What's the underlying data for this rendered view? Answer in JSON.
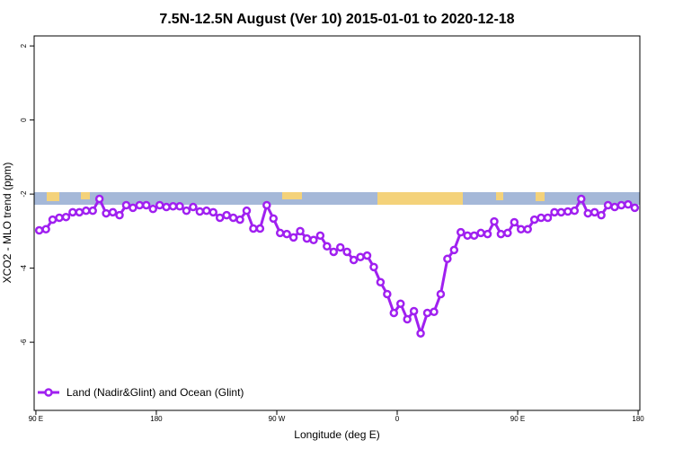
{
  "chart_data": {
    "type": "line",
    "title": "7.5N-12.5N August (Ver 10)   2015-01-01 to 2020-12-18",
    "x_label": "Longitude (deg E)",
    "y_label": "XCO2 - MLO trend (ppm)",
    "x": [
      92.5,
      97.5,
      102.5,
      107.5,
      112.5,
      117.5,
      122.5,
      127.5,
      132.5,
      137.5,
      142.5,
      147.5,
      152.5,
      157.5,
      162.5,
      167.5,
      172.5,
      177.5,
      182.5,
      187.5,
      192.5,
      197.5,
      202.5,
      207.5,
      212.5,
      217.5,
      222.5,
      227.5,
      232.5,
      237.5,
      242.5,
      247.5,
      252.5,
      257.5,
      262.5,
      267.5,
      272.5,
      277.5,
      282.5,
      287.5,
      292.5,
      297.5,
      302.5,
      307.5,
      312.5,
      317.5,
      322.5,
      327.5,
      332.5,
      337.5,
      342.5,
      347.5,
      352.5,
      357.5,
      362.5,
      367.5,
      372.5,
      377.5,
      382.5,
      387.5,
      392.5,
      397.5,
      402.5,
      407.5,
      412.5,
      417.5,
      422.5,
      427.5,
      432.5,
      437.5,
      442.5,
      447.5,
      452.5,
      457.5,
      462.5,
      467.5,
      472.5,
      477.5,
      482.5,
      487.5,
      492.5,
      497.5,
      502.5,
      507.5,
      512.5,
      517.5,
      522.5,
      527.5,
      532.5,
      537.5
    ],
    "series": [
      {
        "name": "Land (Nadir&Glint) and Ocean (Glint)",
        "color": "#a020f0",
        "values": [
          -2.98,
          -2.95,
          -2.69,
          -2.64,
          -2.62,
          -2.49,
          -2.49,
          -2.45,
          -2.45,
          -2.13,
          -2.52,
          -2.49,
          -2.57,
          -2.3,
          -2.37,
          -2.3,
          -2.3,
          -2.4,
          -2.3,
          -2.35,
          -2.33,
          -2.33,
          -2.45,
          -2.35,
          -2.47,
          -2.45,
          -2.49,
          -2.64,
          -2.57,
          -2.64,
          -2.69,
          -2.45,
          -2.93,
          -2.93,
          -2.3,
          -2.66,
          -3.05,
          -3.08,
          -3.17,
          -3.0,
          -3.2,
          -3.24,
          -3.12,
          -3.41,
          -3.56,
          -3.44,
          -3.56,
          -3.78,
          -3.7,
          -3.66,
          -3.97,
          -4.38,
          -4.7,
          -5.21,
          -4.96,
          -5.38,
          -5.16,
          -5.76,
          -5.21,
          -5.18,
          -4.7,
          -3.75,
          -3.51,
          -3.03,
          -3.12,
          -3.12,
          -3.05,
          -3.08,
          -2.74,
          -3.08,
          -3.05,
          -2.76,
          -2.95,
          -2.95,
          -2.69,
          -2.64,
          -2.64,
          -2.49,
          -2.49,
          -2.47,
          -2.45,
          -2.13,
          -2.52,
          -2.49,
          -2.57,
          -2.3,
          -2.35,
          -2.3,
          -2.28,
          -2.37
        ]
      }
    ],
    "xlim": [
      88.7,
      541.3
    ],
    "xticks": [
      {
        "value": 90,
        "label": "90 E"
      },
      180,
      {
        "value": 270,
        "label": "90 W"
      },
      {
        "value": 360,
        "label": "0"
      },
      {
        "value": 450,
        "label": "90 E"
      },
      {
        "value": 540,
        "label": "180"
      }
    ],
    "ylim": [
      -7.84,
      2.27
    ],
    "yticks": [
      -6,
      -4,
      -2,
      0,
      2
    ],
    "legend": "bottom-left"
  }
}
